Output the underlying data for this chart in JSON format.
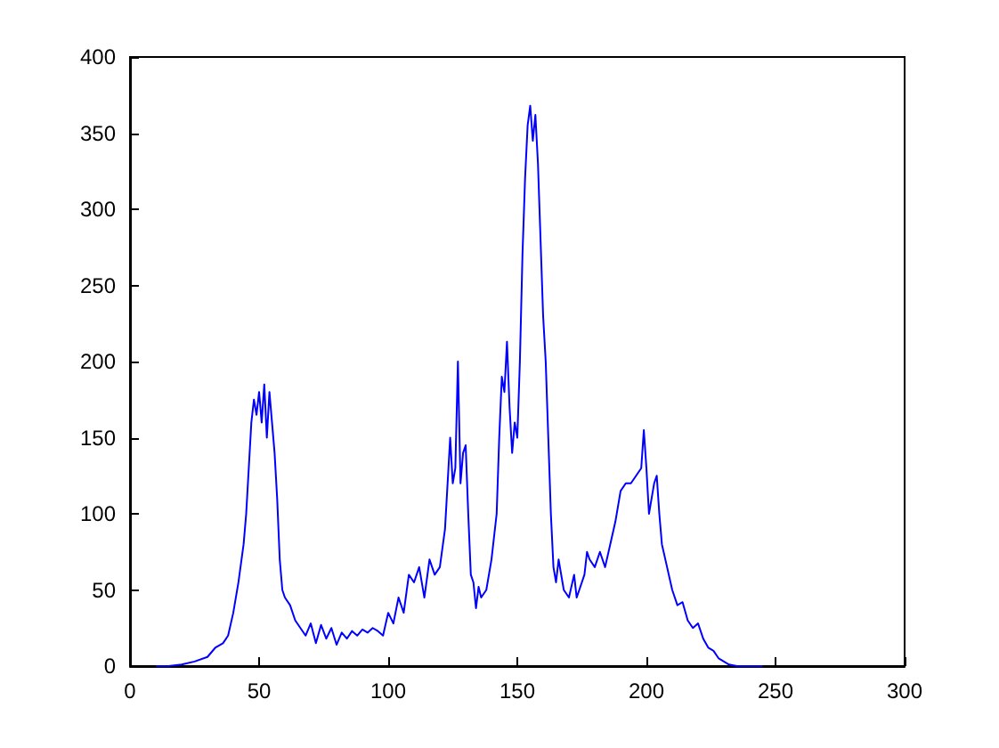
{
  "chart_data": {
    "type": "line",
    "xlim": [
      0,
      300
    ],
    "xticks": [
      0,
      50,
      100,
      150,
      200,
      250,
      300
    ],
    "ylim": [
      0,
      400
    ],
    "yticks": [
      0,
      50,
      100,
      150,
      200,
      250,
      300,
      350,
      400
    ],
    "grid": false,
    "marker": "none",
    "line_style": "solid",
    "series": [
      {
        "color": "#0000ff",
        "x": [
          10,
          15,
          20,
          25,
          30,
          33,
          36,
          38,
          40,
          42,
          44,
          45,
          46,
          47,
          48,
          49,
          50,
          51,
          52,
          53,
          54,
          55,
          56,
          57,
          58,
          59,
          60,
          62,
          64,
          66,
          68,
          70,
          72,
          74,
          76,
          78,
          80,
          82,
          84,
          86,
          88,
          90,
          92,
          94,
          96,
          98,
          100,
          102,
          104,
          106,
          108,
          110,
          112,
          114,
          116,
          118,
          120,
          122,
          124,
          125,
          126,
          127,
          128,
          129,
          130,
          131,
          132,
          133,
          134,
          135,
          136,
          138,
          140,
          142,
          143,
          144,
          145,
          146,
          147,
          148,
          149,
          150,
          151,
          152,
          153,
          154,
          155,
          156,
          157,
          158,
          159,
          160,
          161,
          162,
          163,
          164,
          165,
          166,
          168,
          170,
          172,
          173,
          174,
          176,
          177,
          178,
          180,
          182,
          184,
          186,
          188,
          190,
          192,
          194,
          196,
          198,
          199,
          200,
          201,
          202,
          203,
          204,
          205,
          206,
          208,
          210,
          212,
          214,
          216,
          218,
          220,
          222,
          224,
          226,
          228,
          230,
          232,
          235,
          240,
          245
        ],
        "values": [
          0,
          0,
          1,
          3,
          6,
          12,
          15,
          20,
          35,
          55,
          80,
          100,
          130,
          160,
          175,
          165,
          180,
          160,
          185,
          150,
          180,
          160,
          140,
          110,
          70,
          50,
          45,
          40,
          30,
          25,
          20,
          28,
          15,
          27,
          18,
          25,
          14,
          22,
          18,
          23,
          20,
          24,
          22,
          25,
          23,
          20,
          35,
          28,
          45,
          35,
          60,
          55,
          65,
          45,
          70,
          60,
          65,
          90,
          150,
          120,
          130,
          200,
          120,
          140,
          145,
          100,
          60,
          55,
          38,
          52,
          45,
          50,
          70,
          100,
          150,
          190,
          180,
          213,
          170,
          140,
          160,
          150,
          200,
          270,
          320,
          355,
          368,
          345,
          362,
          330,
          280,
          230,
          200,
          150,
          100,
          65,
          55,
          70,
          50,
          45,
          60,
          45,
          50,
          60,
          75,
          70,
          65,
          75,
          65,
          80,
          95,
          115,
          120,
          120,
          125,
          130,
          155,
          130,
          100,
          110,
          120,
          125,
          100,
          80,
          65,
          50,
          40,
          42,
          30,
          25,
          28,
          18,
          12,
          10,
          5,
          3,
          1,
          0,
          0,
          0
        ]
      }
    ]
  }
}
